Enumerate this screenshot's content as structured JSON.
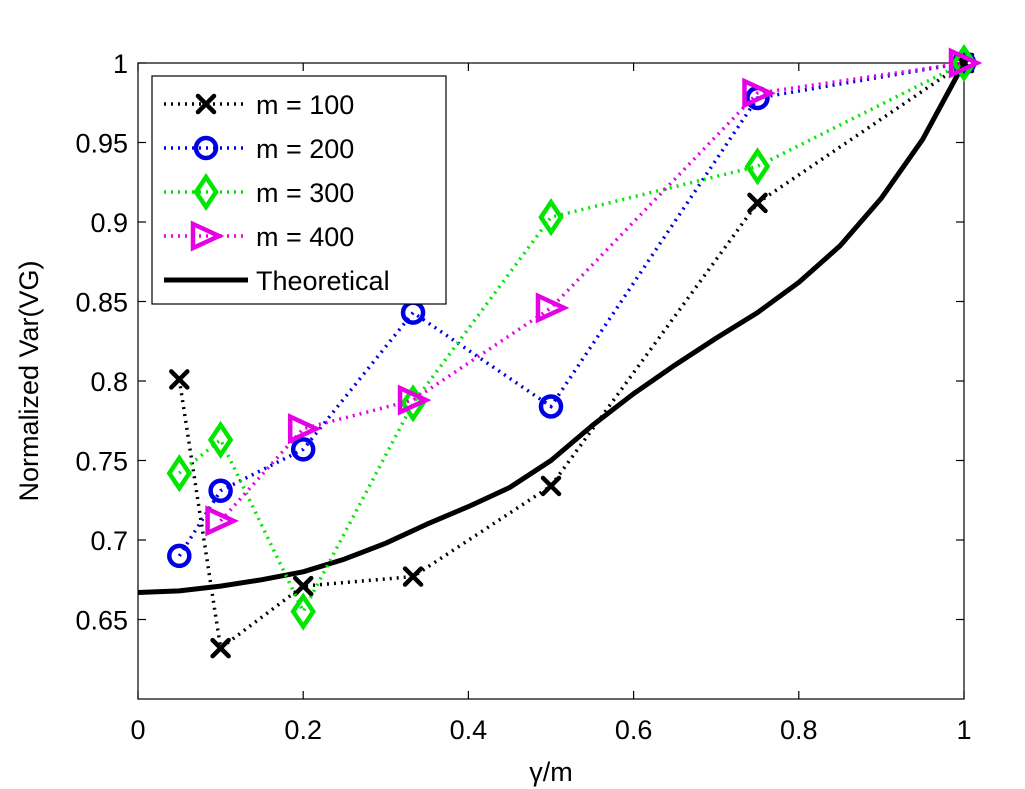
{
  "chart_data": {
    "type": "line",
    "title": "",
    "xlabel": "γ/m",
    "ylabel": "Normalized Var(VG)",
    "xlim": [
      0,
      1
    ],
    "ylim": [
      0.6,
      1.0
    ],
    "xticks": [
      0,
      0.2,
      0.4,
      0.6,
      0.8,
      1
    ],
    "xtick_labels": [
      "0",
      "0.2",
      "0.4",
      "0.6",
      "0.8",
      "1"
    ],
    "yticks": [
      0.65,
      0.7,
      0.75,
      0.8,
      0.85,
      0.9,
      0.95,
      1
    ],
    "ytick_labels": [
      "0.65",
      "0.7",
      "0.75",
      "0.8",
      "0.85",
      "0.9",
      "0.95",
      "1"
    ],
    "grid": false,
    "legend_position": "top-left",
    "series": [
      {
        "name": "m = 100",
        "color": "#000000",
        "marker": "x",
        "line_style": "dotted",
        "x": [
          0.05,
          0.1,
          0.2,
          0.333,
          0.5,
          0.75,
          1.0
        ],
        "y": [
          0.801,
          0.632,
          0.671,
          0.677,
          0.734,
          0.912,
          1.0
        ]
      },
      {
        "name": "m = 200",
        "color": "#0000e6",
        "marker": "circle",
        "line_style": "dotted",
        "x": [
          0.05,
          0.1,
          0.2,
          0.333,
          0.5,
          0.75,
          1.0
        ],
        "y": [
          0.69,
          0.731,
          0.757,
          0.843,
          0.784,
          0.978,
          1.0
        ]
      },
      {
        "name": "m = 300",
        "color": "#00e600",
        "marker": "diamond",
        "line_style": "dotted",
        "x": [
          0.05,
          0.1,
          0.2,
          0.333,
          0.5,
          0.75,
          1.0
        ],
        "y": [
          0.742,
          0.763,
          0.655,
          0.786,
          0.903,
          0.935,
          1.0
        ]
      },
      {
        "name": "m = 400",
        "color": "#e600e6",
        "marker": "triangle-right",
        "line_style": "dotted",
        "x": [
          0.1,
          0.2,
          0.333,
          0.5,
          0.75,
          1.0
        ],
        "y": [
          0.712,
          0.77,
          0.788,
          0.846,
          0.981,
          1.0
        ]
      },
      {
        "name": "Theoretical",
        "color": "#000000",
        "marker": "none",
        "line_style": "solid",
        "x": [
          0,
          0.05,
          0.1,
          0.15,
          0.2,
          0.25,
          0.3,
          0.35,
          0.4,
          0.45,
          0.5,
          0.55,
          0.6,
          0.65,
          0.7,
          0.75,
          0.8,
          0.85,
          0.9,
          0.95,
          1.0
        ],
        "y": [
          0.667,
          0.668,
          0.671,
          0.675,
          0.68,
          0.688,
          0.698,
          0.71,
          0.721,
          0.733,
          0.75,
          0.772,
          0.792,
          0.81,
          0.827,
          0.843,
          0.862,
          0.885,
          0.915,
          0.952,
          1.0
        ]
      }
    ]
  }
}
